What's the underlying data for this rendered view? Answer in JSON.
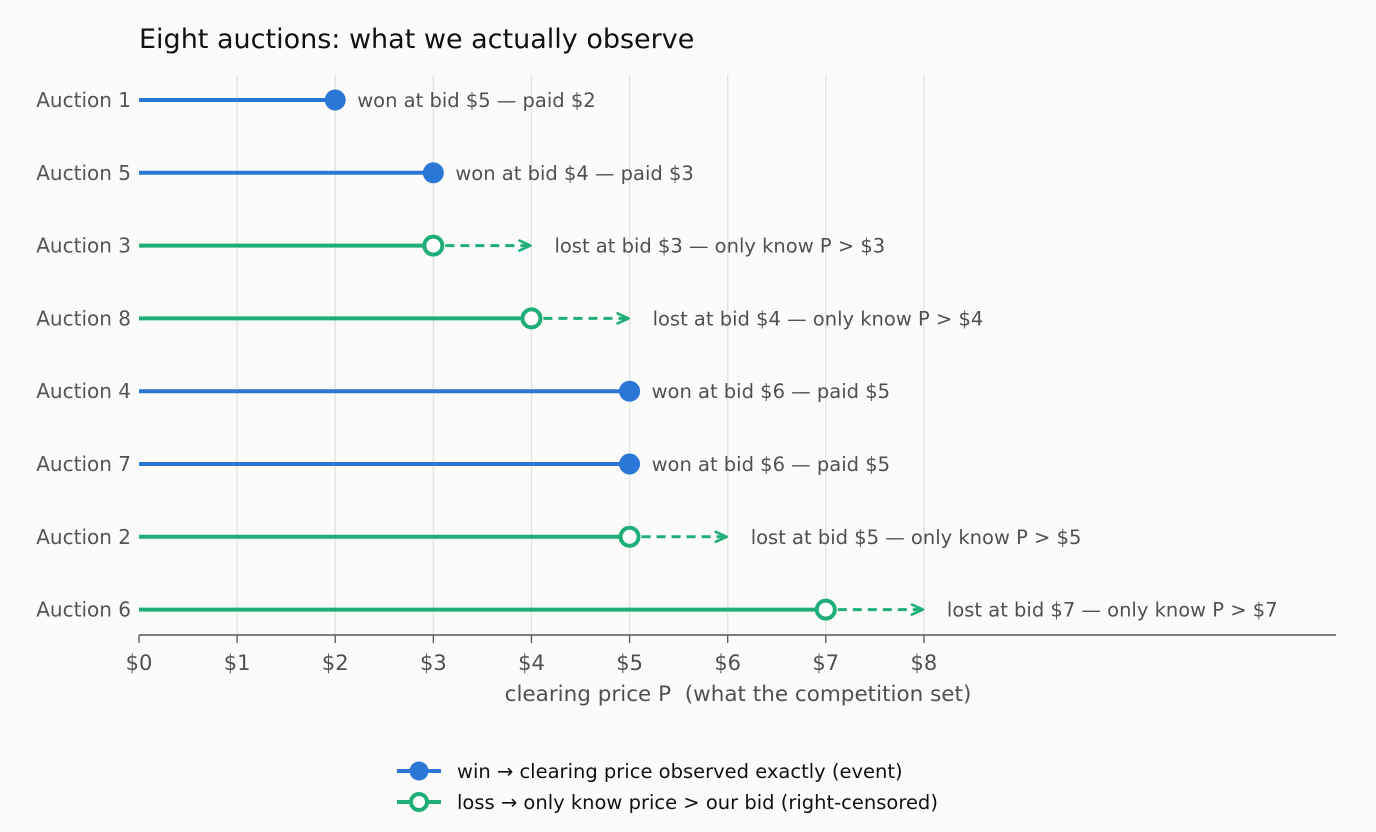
{
  "chart_data": {
    "type": "dot-range",
    "title": "Eight auctions: what we actually observe",
    "xlabel": "clearing price P  (what the competition set)",
    "xlim": [
      0,
      12.2
    ],
    "x_ticks": [
      0,
      1,
      2,
      3,
      4,
      5,
      6,
      7,
      8
    ],
    "x_tick_labels": [
      "$0",
      "$1",
      "$2",
      "$3",
      "$4",
      "$5",
      "$6",
      "$7",
      "$8"
    ],
    "grid": "vertical",
    "colors": {
      "win": "#2a77d6",
      "loss": "#1fae7a"
    },
    "rows": [
      {
        "label": "Auction 1",
        "outcome": "win",
        "bid": 5,
        "value": 2,
        "annotation": "won at bid $5 — paid $2"
      },
      {
        "label": "Auction 5",
        "outcome": "win",
        "bid": 4,
        "value": 3,
        "annotation": "won at bid $4 — paid $3"
      },
      {
        "label": "Auction 3",
        "outcome": "loss",
        "bid": 3,
        "value": 3,
        "annotation": "lost at bid $3 — only know P > $3"
      },
      {
        "label": "Auction 8",
        "outcome": "loss",
        "bid": 4,
        "value": 4,
        "annotation": "lost at bid $4 — only know P > $4"
      },
      {
        "label": "Auction 4",
        "outcome": "win",
        "bid": 6,
        "value": 5,
        "annotation": "won at bid $6 — paid $5"
      },
      {
        "label": "Auction 7",
        "outcome": "win",
        "bid": 6,
        "value": 5,
        "annotation": "won at bid $6 — paid $5"
      },
      {
        "label": "Auction 2",
        "outcome": "loss",
        "bid": 5,
        "value": 5,
        "annotation": "lost at bid $5 — only know P > $5"
      },
      {
        "label": "Auction 6",
        "outcome": "loss",
        "bid": 7,
        "value": 7,
        "annotation": "lost at bid $7 — only know P > $7"
      }
    ],
    "legend": {
      "position": "bottom-center",
      "entries": [
        {
          "key": "win",
          "label": "win → clearing price observed exactly (event)"
        },
        {
          "key": "loss",
          "label": "loss → only know price > our bid (right-censored)"
        }
      ]
    }
  }
}
